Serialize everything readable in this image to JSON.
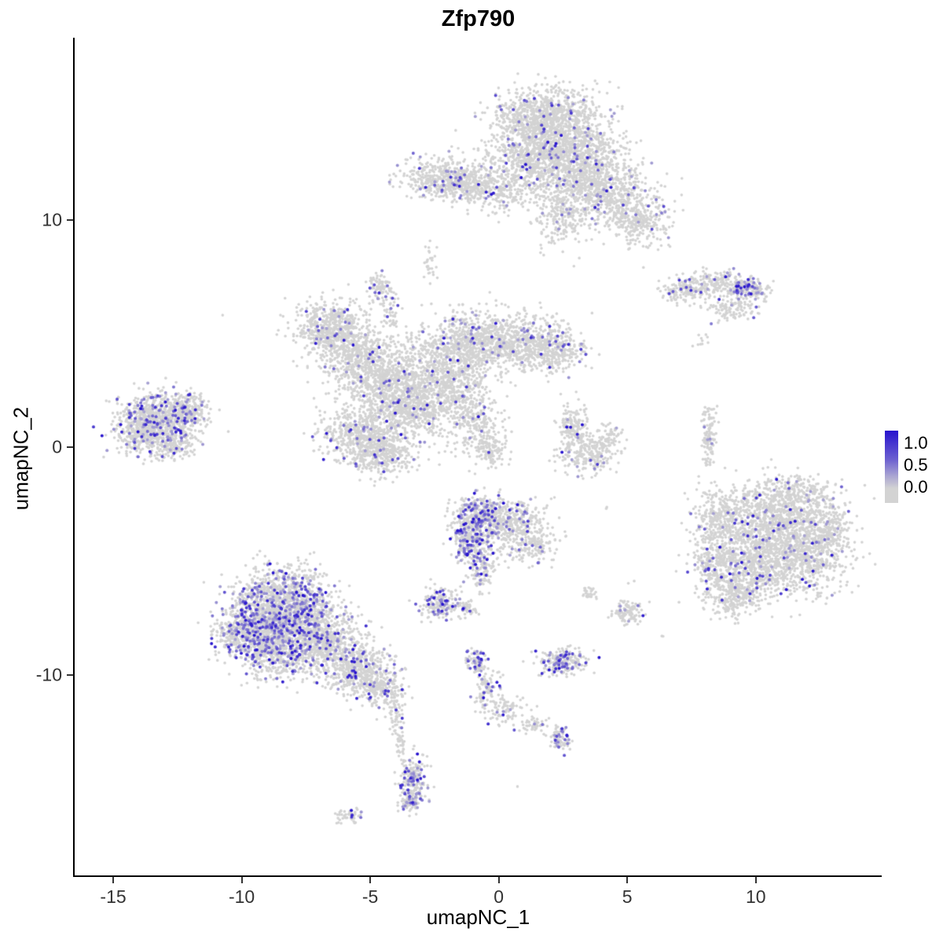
{
  "chart_data": {
    "type": "scatter",
    "title": "Zfp790",
    "xlabel": "umapNC_1",
    "ylabel": "umapNC_2",
    "xlim": [
      -16.5,
      14.9
    ],
    "ylim": [
      -18.8,
      18.0
    ],
    "x_ticks": [
      -15,
      -10,
      -5,
      0,
      5,
      10
    ],
    "y_ticks": [
      -10,
      0,
      10
    ],
    "grid": false,
    "legend": {
      "position": "right",
      "tick_labels": [
        "1.0",
        "0.5",
        "0.0"
      ],
      "tick_values": [
        1.0,
        0.5,
        0.0
      ],
      "low_color": "#D3D3D3",
      "high_color": "#2713CE"
    },
    "description": "UMAP feature plot of Zfp790 expression; grey points are non-expressing cells, purple-blue points indicate expression level 0 to 1+",
    "clusters": [
      {
        "x": 2.3,
        "y": 13.7,
        "sx": 1.0,
        "sy": 1.0,
        "n": 1300,
        "f": 0.035
      },
      {
        "x": 1.2,
        "y": 14.6,
        "sx": 0.8,
        "sy": 0.5,
        "n": 300,
        "f": 0.03
      },
      {
        "x": 0.9,
        "y": 12.3,
        "sx": 0.8,
        "sy": 0.8,
        "n": 450,
        "f": 0.04
      },
      {
        "x": 3.4,
        "y": 12.2,
        "sx": 0.8,
        "sy": 0.8,
        "n": 550,
        "f": 0.04
      },
      {
        "x": 4.4,
        "y": 11.2,
        "sx": 0.8,
        "sy": 0.7,
        "n": 450,
        "f": 0.05
      },
      {
        "x": 5.5,
        "y": 10.0,
        "sx": 0.6,
        "sy": 0.55,
        "n": 280,
        "f": 0.04
      },
      {
        "x": 2.5,
        "y": 10.2,
        "sx": 0.55,
        "sy": 0.7,
        "n": 260,
        "f": 0.02
      },
      {
        "x": -2.2,
        "y": 11.8,
        "sx": 0.75,
        "sy": 0.45,
        "n": 430,
        "f": 0.07
      },
      {
        "x": -1.0,
        "y": 11.5,
        "sx": 0.5,
        "sy": 0.4,
        "n": 180,
        "f": 0.04
      },
      {
        "x": 0.1,
        "y": 11.3,
        "sx": 0.6,
        "sy": 0.4,
        "n": 130,
        "f": 0.02
      },
      {
        "x": -2.7,
        "y": 8.2,
        "sx": 0.12,
        "sy": 0.4,
        "n": 28,
        "f": 0
      },
      {
        "x": -4.6,
        "y": 7.1,
        "sx": 0.28,
        "sy": 0.3,
        "n": 90,
        "f": 0.12
      },
      {
        "x": -4.2,
        "y": 6.0,
        "sx": 0.18,
        "sy": 0.55,
        "n": 55,
        "f": 0.03
      },
      {
        "x": 7.2,
        "y": 6.9,
        "sx": 0.45,
        "sy": 0.3,
        "n": 140,
        "f": 0.05
      },
      {
        "x": 8.3,
        "y": 7.2,
        "sx": 0.5,
        "sy": 0.28,
        "n": 150,
        "f": 0.04
      },
      {
        "x": 9.5,
        "y": 7.0,
        "sx": 0.45,
        "sy": 0.28,
        "n": 150,
        "f": 0.28
      },
      {
        "x": 9.0,
        "y": 6.1,
        "sx": 0.55,
        "sy": 0.25,
        "n": 110,
        "f": 0.04
      },
      {
        "x": 10.2,
        "y": 6.9,
        "sx": 0.2,
        "sy": 0.2,
        "n": 40,
        "f": 0.1
      },
      {
        "x": 7.9,
        "y": 4.7,
        "sx": 0.12,
        "sy": 0.18,
        "n": 10,
        "f": 0
      },
      {
        "x": -6.6,
        "y": 5.3,
        "sx": 0.7,
        "sy": 0.6,
        "n": 500,
        "f": 0.05
      },
      {
        "x": -5.6,
        "y": 4.2,
        "sx": 0.7,
        "sy": 0.6,
        "n": 430,
        "f": 0.04
      },
      {
        "x": -4.4,
        "y": 3.0,
        "sx": 0.85,
        "sy": 0.75,
        "n": 650,
        "f": 0.04
      },
      {
        "x": -3.2,
        "y": 1.8,
        "sx": 0.85,
        "sy": 0.75,
        "n": 650,
        "f": 0.04
      },
      {
        "x": -5.3,
        "y": 0.6,
        "sx": 0.85,
        "sy": 0.65,
        "n": 550,
        "f": 0.05
      },
      {
        "x": -4.6,
        "y": -0.4,
        "sx": 0.65,
        "sy": 0.45,
        "n": 320,
        "f": 0.04
      },
      {
        "x": -2.2,
        "y": 3.9,
        "sx": 0.75,
        "sy": 0.65,
        "n": 420,
        "f": 0.04
      },
      {
        "x": -0.8,
        "y": 4.7,
        "sx": 0.85,
        "sy": 0.65,
        "n": 520,
        "f": 0.05
      },
      {
        "x": 0.8,
        "y": 4.6,
        "sx": 0.85,
        "sy": 0.65,
        "n": 520,
        "f": 0.05
      },
      {
        "x": 2.2,
        "y": 4.3,
        "sx": 0.6,
        "sy": 0.5,
        "n": 280,
        "f": 0.05
      },
      {
        "x": -1.6,
        "y": 2.6,
        "sx": 0.6,
        "sy": 0.6,
        "n": 280,
        "f": 0.03
      },
      {
        "x": -0.9,
        "y": 1.1,
        "sx": 0.45,
        "sy": 0.75,
        "n": 230,
        "f": 0.04
      },
      {
        "x": -0.3,
        "y": -0.1,
        "sx": 0.3,
        "sy": 0.45,
        "n": 110,
        "f": 0.03
      },
      {
        "x": -13.2,
        "y": 1.3,
        "sx": 0.8,
        "sy": 0.6,
        "n": 750,
        "f": 0.13
      },
      {
        "x": -12.1,
        "y": 1.6,
        "sx": 0.4,
        "sy": 0.4,
        "n": 190,
        "f": 0.1
      },
      {
        "x": -13.9,
        "y": 0.5,
        "sx": 0.5,
        "sy": 0.4,
        "n": 230,
        "f": 0.12
      },
      {
        "x": -12.6,
        "y": 0.1,
        "sx": 0.4,
        "sy": 0.3,
        "n": 140,
        "f": 0.08
      },
      {
        "x": 2.9,
        "y": 1.0,
        "sx": 0.3,
        "sy": 0.45,
        "n": 140,
        "f": 0.04
      },
      {
        "x": 3.4,
        "y": -0.2,
        "sx": 0.55,
        "sy": 0.5,
        "n": 250,
        "f": 0.05
      },
      {
        "x": 4.3,
        "y": 0.4,
        "sx": 0.25,
        "sy": 0.3,
        "n": 70,
        "f": 0.03
      },
      {
        "x": 8.2,
        "y": 0.4,
        "sx": 0.14,
        "sy": 0.75,
        "n": 120,
        "f": 0.04
      },
      {
        "x": -0.7,
        "y": -3.0,
        "sx": 0.55,
        "sy": 0.45,
        "n": 430,
        "f": 0.22
      },
      {
        "x": -1.0,
        "y": -4.2,
        "sx": 0.4,
        "sy": 0.5,
        "n": 300,
        "f": 0.3
      },
      {
        "x": 0.6,
        "y": -3.4,
        "sx": 0.6,
        "sy": 0.55,
        "n": 360,
        "f": 0.07
      },
      {
        "x": 1.4,
        "y": -4.3,
        "sx": 0.45,
        "sy": 0.4,
        "n": 150,
        "f": 0.05
      },
      {
        "x": -0.6,
        "y": -5.4,
        "sx": 0.25,
        "sy": 0.45,
        "n": 100,
        "f": 0.1
      },
      {
        "x": -2.3,
        "y": -6.9,
        "sx": 0.35,
        "sy": 0.35,
        "n": 180,
        "f": 0.2
      },
      {
        "x": -1.2,
        "y": -7.1,
        "sx": 0.2,
        "sy": 0.2,
        "n": 45,
        "f": 0.08
      },
      {
        "x": -8.3,
        "y": -6.2,
        "sx": 0.9,
        "sy": 0.55,
        "n": 520,
        "f": 0.2
      },
      {
        "x": -9.2,
        "y": -7.6,
        "sx": 0.8,
        "sy": 0.7,
        "n": 720,
        "f": 0.25
      },
      {
        "x": -7.6,
        "y": -7.6,
        "sx": 0.8,
        "sy": 0.7,
        "n": 680,
        "f": 0.2
      },
      {
        "x": -8.7,
        "y": -9.0,
        "sx": 0.7,
        "sy": 0.6,
        "n": 520,
        "f": 0.18
      },
      {
        "x": -6.6,
        "y": -8.8,
        "sx": 0.8,
        "sy": 0.6,
        "n": 520,
        "f": 0.12
      },
      {
        "x": -5.5,
        "y": -9.8,
        "sx": 0.7,
        "sy": 0.5,
        "n": 380,
        "f": 0.08
      },
      {
        "x": -4.6,
        "y": -10.6,
        "sx": 0.5,
        "sy": 0.4,
        "n": 210,
        "f": 0.1
      },
      {
        "x": -10.2,
        "y": -8.3,
        "sx": 0.4,
        "sy": 0.5,
        "n": 190,
        "f": 0.15
      },
      {
        "x": -4.0,
        "y": -11.7,
        "sx": 0.15,
        "sy": 0.5,
        "n": 55,
        "f": 0.06
      },
      {
        "x": -3.8,
        "y": -12.9,
        "sx": 0.12,
        "sy": 0.4,
        "n": 35,
        "f": 0.05
      },
      {
        "x": -3.3,
        "y": -14.7,
        "sx": 0.28,
        "sy": 0.55,
        "n": 200,
        "f": 0.3
      },
      {
        "x": -3.5,
        "y": -15.6,
        "sx": 0.2,
        "sy": 0.2,
        "n": 55,
        "f": 0.25
      },
      {
        "x": -5.9,
        "y": -16.2,
        "sx": 0.3,
        "sy": 0.15,
        "n": 50,
        "f": 0.06
      },
      {
        "x": -0.9,
        "y": -9.4,
        "sx": 0.2,
        "sy": 0.3,
        "n": 75,
        "f": 0.25
      },
      {
        "x": -0.5,
        "y": -10.6,
        "sx": 0.25,
        "sy": 0.45,
        "n": 100,
        "f": 0.12
      },
      {
        "x": 0.3,
        "y": -11.6,
        "sx": 0.4,
        "sy": 0.3,
        "n": 85,
        "f": 0.08
      },
      {
        "x": 1.3,
        "y": -12.2,
        "sx": 0.3,
        "sy": 0.2,
        "n": 45,
        "f": 0.05
      },
      {
        "x": 2.4,
        "y": -12.8,
        "sx": 0.22,
        "sy": 0.28,
        "n": 75,
        "f": 0.3
      },
      {
        "x": 2.5,
        "y": -9.4,
        "sx": 0.5,
        "sy": 0.3,
        "n": 220,
        "f": 0.22
      },
      {
        "x": 5.0,
        "y": -7.2,
        "sx": 0.28,
        "sy": 0.28,
        "n": 115,
        "f": 0.05
      },
      {
        "x": 3.5,
        "y": -6.4,
        "sx": 0.15,
        "sy": 0.15,
        "n": 28,
        "f": 0.04
      },
      {
        "x": 10.9,
        "y": -3.3,
        "sx": 1.05,
        "sy": 0.85,
        "n": 1050,
        "f": 0.05
      },
      {
        "x": 9.9,
        "y": -5.2,
        "sx": 0.9,
        "sy": 0.75,
        "n": 720,
        "f": 0.06
      },
      {
        "x": 12.2,
        "y": -4.8,
        "sx": 0.75,
        "sy": 0.75,
        "n": 520,
        "f": 0.05
      },
      {
        "x": 8.6,
        "y": -3.2,
        "sx": 0.55,
        "sy": 0.7,
        "n": 290,
        "f": 0.04
      },
      {
        "x": 9.1,
        "y": -6.6,
        "sx": 0.55,
        "sy": 0.45,
        "n": 240,
        "f": 0.05
      },
      {
        "x": 11.6,
        "y": -1.9,
        "sx": 0.8,
        "sy": 0.35,
        "n": 210,
        "f": 0.04
      },
      {
        "x": 12.9,
        "y": -3.6,
        "sx": 0.4,
        "sy": 0.5,
        "n": 140,
        "f": 0.04
      },
      {
        "x": 8.3,
        "y": -5.1,
        "sx": 0.4,
        "sy": 0.55,
        "n": 170,
        "f": 0.05
      },
      {
        "x": -10.7,
        "y": 5.8,
        "sx": 0.05,
        "sy": 0.05,
        "n": 1,
        "f": 0
      },
      {
        "x": 4.3,
        "y": -2.6,
        "sx": 0.1,
        "sy": 0.1,
        "n": 2,
        "f": 0
      },
      {
        "x": 6.3,
        "y": -8.2,
        "sx": 0.1,
        "sy": 0.1,
        "n": 2,
        "f": 0
      },
      {
        "x": 0.6,
        "y": -14.9,
        "sx": 0.08,
        "sy": 0.08,
        "n": 1,
        "f": 0
      },
      {
        "x": 5.2,
        "y": -5.9,
        "sx": 0.08,
        "sy": 0.08,
        "n": 2,
        "f": 0
      }
    ]
  }
}
